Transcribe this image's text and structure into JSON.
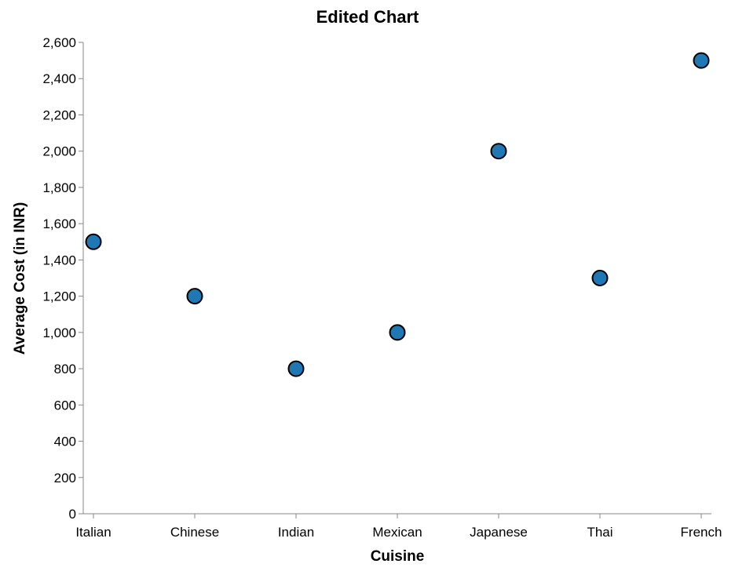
{
  "chart_data": {
    "type": "scatter",
    "title": "Edited Chart",
    "xlabel": "Cuisine",
    "ylabel": "Average Cost (in INR)",
    "categories": [
      "Italian",
      "Chinese",
      "Indian",
      "Mexican",
      "Japanese",
      "Thai",
      "French"
    ],
    "values": [
      1500,
      1200,
      800,
      1000,
      2000,
      1300,
      2500
    ],
    "ylim": [
      0,
      2600
    ],
    "yticks": [
      0,
      200,
      400,
      600,
      800,
      1000,
      1200,
      1400,
      1600,
      1800,
      2000,
      2200,
      2400,
      2600
    ],
    "grid": false,
    "point_color": "#1f77b4"
  }
}
